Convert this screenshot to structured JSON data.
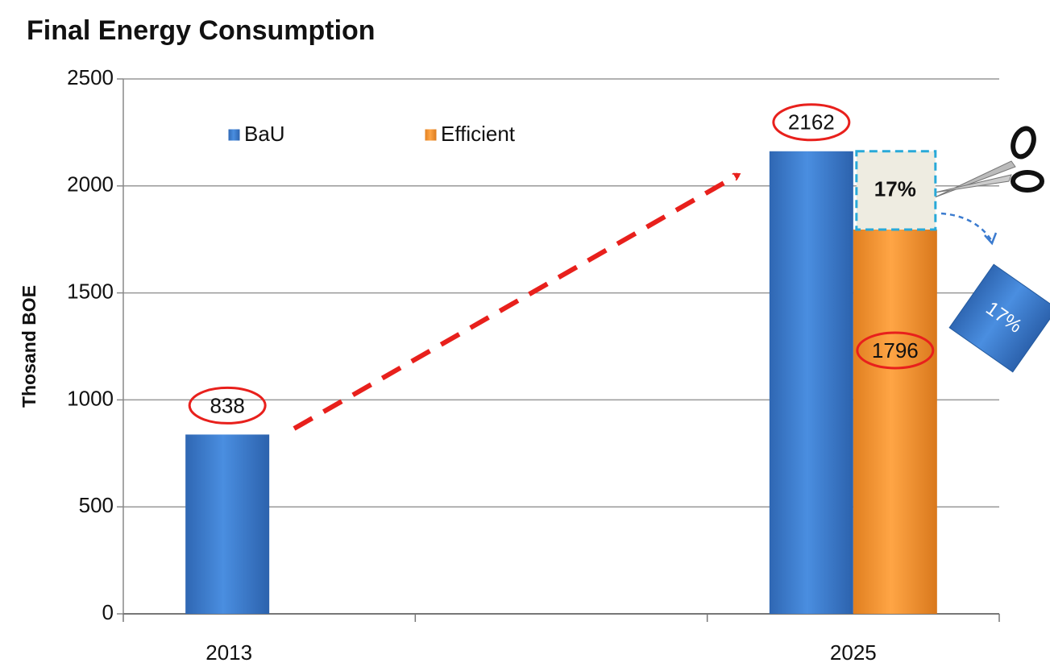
{
  "chart_data": {
    "type": "bar",
    "title": "Final Energy Consumption",
    "y_label": "Thosand BOE",
    "categories": [
      "2013",
      null,
      "2025"
    ],
    "series": [
      {
        "name": "BaU",
        "color": "#3b7bcf",
        "values": [
          838,
          null,
          2162
        ]
      },
      {
        "name": "Efficient",
        "color": "#f39a35",
        "values": [
          null,
          null,
          1796
        ]
      }
    ],
    "ylim": [
      0,
      2500
    ],
    "yticks": [
      0,
      500,
      1000,
      1500,
      2000,
      2500
    ],
    "grid": true,
    "legend": "top-left",
    "annotations": [
      "17%",
      "17%"
    ]
  }
}
